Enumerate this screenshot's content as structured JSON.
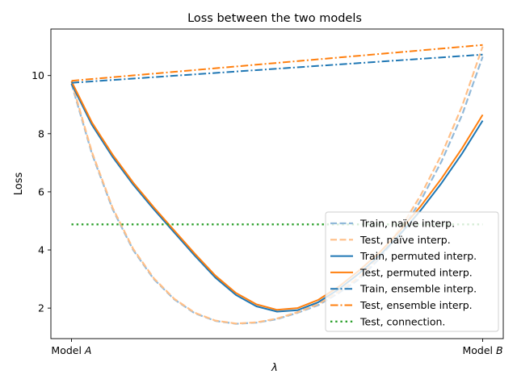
{
  "chart_data": {
    "type": "line",
    "title": "Loss between the two models",
    "xlabel": "λ",
    "ylabel": "Loss",
    "xlim": [
      -0.05,
      1.05
    ],
    "ylim": [
      0.95,
      11.6
    ],
    "grid": false,
    "legend_position": "lower-right",
    "x_ticks": [
      {
        "value": 0,
        "prefix": "Model ",
        "italic": "A"
      },
      {
        "value": 1,
        "prefix": "Model ",
        "italic": "B"
      }
    ],
    "y_ticks": [
      2,
      4,
      6,
      8,
      10
    ],
    "series": [
      {
        "name": "Train, naïve interp.",
        "color": "#92b9d9",
        "style": "dashed",
        "x": [
          0,
          0.05,
          0.1,
          0.15,
          0.2,
          0.25,
          0.3,
          0.35,
          0.4,
          0.45,
          0.5,
          0.55,
          0.6,
          0.65,
          0.7,
          0.75,
          0.8,
          0.85,
          0.9,
          0.95,
          1
        ],
        "y": [
          9.72,
          7.3,
          5.4,
          4.0,
          3.0,
          2.3,
          1.82,
          1.56,
          1.46,
          1.5,
          1.62,
          1.84,
          2.1,
          2.52,
          3.0,
          3.72,
          4.6,
          5.72,
          7.05,
          8.65,
          10.65
        ]
      },
      {
        "name": "Test, naïve interp.",
        "color": "#ffbf87",
        "style": "dashed",
        "x": [
          0,
          0.05,
          0.1,
          0.15,
          0.2,
          0.25,
          0.3,
          0.35,
          0.4,
          0.45,
          0.5,
          0.55,
          0.6,
          0.65,
          0.7,
          0.75,
          0.8,
          0.85,
          0.9,
          0.95,
          1
        ],
        "y": [
          9.8,
          7.36,
          5.45,
          4.04,
          3.03,
          2.32,
          1.84,
          1.57,
          1.47,
          1.51,
          1.64,
          1.86,
          2.14,
          2.57,
          3.07,
          3.82,
          4.74,
          5.9,
          7.28,
          8.95,
          11.0
        ]
      },
      {
        "name": "Train, permuted interp.",
        "color": "#1f77b4",
        "style": "solid",
        "x": [
          0,
          0.05,
          0.1,
          0.15,
          0.2,
          0.25,
          0.3,
          0.35,
          0.4,
          0.45,
          0.5,
          0.55,
          0.6,
          0.65,
          0.7,
          0.75,
          0.8,
          0.85,
          0.9,
          0.95,
          1
        ],
        "y": [
          9.72,
          8.3,
          7.2,
          6.25,
          5.4,
          4.6,
          3.8,
          3.05,
          2.45,
          2.06,
          1.88,
          1.93,
          2.2,
          2.65,
          3.2,
          3.82,
          4.55,
          5.38,
          6.3,
          7.32,
          8.45
        ]
      },
      {
        "name": "Test, permuted interp.",
        "color": "#ff7f0e",
        "style": "solid",
        "x": [
          0,
          0.05,
          0.1,
          0.15,
          0.2,
          0.25,
          0.3,
          0.35,
          0.4,
          0.45,
          0.5,
          0.55,
          0.6,
          0.65,
          0.7,
          0.75,
          0.8,
          0.85,
          0.9,
          0.95,
          1
        ],
        "y": [
          9.8,
          8.38,
          7.28,
          6.32,
          5.47,
          4.67,
          3.87,
          3.12,
          2.52,
          2.13,
          1.94,
          2.0,
          2.28,
          2.74,
          3.3,
          3.93,
          4.68,
          5.52,
          6.46,
          7.5,
          8.65
        ]
      },
      {
        "name": "Train, ensemble interp.",
        "color": "#1f77b4",
        "style": "dashdot",
        "x": [
          0,
          1
        ],
        "y": [
          9.75,
          10.72
        ]
      },
      {
        "name": "Test, ensemble interp.",
        "color": "#ff7f0e",
        "style": "dashdot",
        "x": [
          0,
          1
        ],
        "y": [
          9.82,
          11.05
        ]
      },
      {
        "name": "Test, connection.",
        "color": "#2ca02c",
        "style": "dotted",
        "x": [
          0,
          1
        ],
        "y": [
          4.88,
          4.88
        ]
      }
    ]
  }
}
